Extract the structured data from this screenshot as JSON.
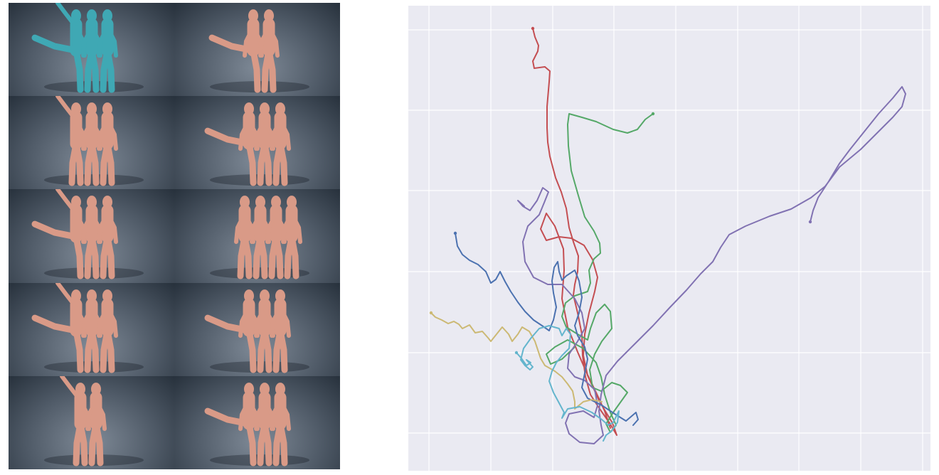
{
  "colors": {
    "panel_bg": "#eaeaf2",
    "grid_line": "#ffffff",
    "figure_teal": "#3fa8b4",
    "figure_peach": "#d99a87",
    "trajectory_blue": "#4c72b0",
    "trajectory_green": "#55a868",
    "trajectory_red": "#c44e52",
    "trajectory_purple": "#8172b2",
    "trajectory_yellow": "#ccb974",
    "trajectory_cyan": "#64b5cd"
  },
  "renders": {
    "rows": 5,
    "columns": 2,
    "tiles": [
      {
        "figure_color": "teal",
        "figures": 3
      },
      {
        "figure_color": "peach",
        "figures": 2
      },
      {
        "figure_color": "peach",
        "figures": 3
      },
      {
        "figure_color": "peach",
        "figures": 3
      },
      {
        "figure_color": "peach",
        "figures": 3
      },
      {
        "figure_color": "peach",
        "figures": 4
      },
      {
        "figure_color": "peach",
        "figures": 3
      },
      {
        "figure_color": "peach",
        "figures": 3
      },
      {
        "figure_color": "peach",
        "figures": 2
      },
      {
        "figure_color": "peach",
        "figures": 3
      }
    ]
  },
  "chart_data": {
    "type": "line",
    "title": "",
    "xlabel": "",
    "ylabel": "",
    "grid": true,
    "tick_labels_visible": false,
    "series": [
      {
        "color": "#c44e52",
        "points": [
          [
            749,
            40
          ],
          [
            752,
            52
          ],
          [
            757,
            64
          ],
          [
            756,
            72
          ],
          [
            749,
            86
          ],
          [
            751,
            96
          ],
          [
            766,
            94
          ],
          [
            773,
            100
          ],
          [
            772,
            115
          ],
          [
            769,
            150
          ],
          [
            769,
            180
          ],
          [
            770,
            200
          ],
          [
            773,
            220
          ],
          [
            781,
            250
          ],
          [
            789,
            270
          ],
          [
            796,
            293
          ],
          [
            800,
            320
          ],
          [
            806,
            340
          ],
          [
            813,
            360
          ],
          [
            812,
            382
          ],
          [
            808,
            400
          ],
          [
            806,
            415
          ],
          [
            812,
            440
          ],
          [
            818,
            470
          ],
          [
            819,
            500
          ],
          [
            823,
            530
          ],
          [
            830,
            555
          ],
          [
            843,
            575
          ],
          [
            857,
            595
          ],
          [
            867,
            612
          ],
          [
            861,
            595
          ],
          [
            843,
            565
          ],
          [
            826,
            528
          ],
          [
            820,
            500
          ],
          [
            822,
            470
          ],
          [
            828,
            440
          ],
          [
            836,
            410
          ],
          [
            840,
            390
          ],
          [
            833,
            365
          ],
          [
            821,
            345
          ],
          [
            803,
            335
          ],
          [
            786,
            333
          ],
          [
            768,
            338
          ],
          [
            760,
            322
          ],
          [
            768,
            300
          ],
          [
            780,
            318
          ],
          [
            792,
            350
          ],
          [
            793,
            380
          ],
          [
            790,
            420
          ],
          [
            798,
            460
          ],
          [
            812,
            495
          ],
          [
            825,
            525
          ],
          [
            838,
            552
          ],
          [
            850,
            578
          ],
          [
            858,
            602
          ]
        ]
      },
      {
        "color": "#55a868",
        "points": [
          [
            918,
            160
          ],
          [
            907,
            168
          ],
          [
            896,
            182
          ],
          [
            882,
            187
          ],
          [
            862,
            182
          ],
          [
            838,
            171
          ],
          [
            818,
            165
          ],
          [
            800,
            160
          ],
          [
            798,
            175
          ],
          [
            799,
            205
          ],
          [
            803,
            240
          ],
          [
            813,
            275
          ],
          [
            822,
            305
          ],
          [
            835,
            325
          ],
          [
            843,
            342
          ],
          [
            844,
            356
          ],
          [
            835,
            364
          ],
          [
            828,
            380
          ],
          [
            830,
            398
          ],
          [
            826,
            410
          ],
          [
            808,
            416
          ],
          [
            795,
            426
          ],
          [
            790,
            445
          ],
          [
            796,
            460
          ],
          [
            812,
            470
          ],
          [
            826,
            478
          ],
          [
            830,
            462
          ],
          [
            838,
            440
          ],
          [
            850,
            428
          ],
          [
            858,
            438
          ],
          [
            860,
            462
          ],
          [
            846,
            480
          ],
          [
            836,
            498
          ],
          [
            829,
            520
          ],
          [
            833,
            545
          ],
          [
            845,
            550
          ],
          [
            860,
            538
          ],
          [
            872,
            542
          ],
          [
            882,
            552
          ],
          [
            872,
            566
          ],
          [
            862,
            580
          ],
          [
            852,
            596
          ],
          [
            858,
            608
          ],
          [
            866,
            598
          ],
          [
            858,
            580
          ],
          [
            850,
            555
          ],
          [
            845,
            530
          ],
          [
            838,
            510
          ],
          [
            820,
            490
          ],
          [
            798,
            478
          ],
          [
            780,
            488
          ],
          [
            768,
            498
          ],
          [
            774,
            512
          ],
          [
            790,
            505
          ],
          [
            808,
            488
          ]
        ]
      },
      {
        "color": "#8172b2",
        "points": [
          [
            1139,
            312
          ],
          [
            1143,
            296
          ],
          [
            1150,
            278
          ],
          [
            1165,
            255
          ],
          [
            1180,
            230
          ],
          [
            1195,
            210
          ],
          [
            1215,
            185
          ],
          [
            1235,
            160
          ],
          [
            1255,
            138
          ],
          [
            1268,
            122
          ],
          [
            1273,
            132
          ],
          [
            1268,
            150
          ],
          [
            1255,
            165
          ],
          [
            1235,
            185
          ],
          [
            1210,
            210
          ],
          [
            1180,
            235
          ],
          [
            1160,
            262
          ],
          [
            1140,
            278
          ],
          [
            1112,
            294
          ],
          [
            1082,
            304
          ],
          [
            1048,
            318
          ],
          [
            1025,
            330
          ],
          [
            1013,
            348
          ],
          [
            1002,
            368
          ],
          [
            985,
            385
          ],
          [
            965,
            408
          ],
          [
            942,
            432
          ],
          [
            918,
            458
          ],
          [
            890,
            486
          ],
          [
            868,
            508
          ],
          [
            852,
            528
          ],
          [
            845,
            555
          ],
          [
            842,
            578
          ],
          [
            845,
            598
          ],
          [
            848,
            612
          ],
          [
            835,
            624
          ],
          [
            815,
            622
          ],
          [
            800,
            610
          ],
          [
            795,
            595
          ],
          [
            800,
            582
          ],
          [
            820,
            578
          ],
          [
            835,
            587
          ],
          [
            840,
            570
          ],
          [
            836,
            548
          ],
          [
            822,
            535
          ],
          [
            808,
            530
          ],
          [
            798,
            518
          ],
          [
            800,
            498
          ],
          [
            812,
            480
          ],
          [
            822,
            462
          ],
          [
            818,
            440
          ],
          [
            808,
            420
          ],
          [
            790,
            400
          ],
          [
            770,
            400
          ],
          [
            750,
            390
          ],
          [
            738,
            368
          ],
          [
            735,
            340
          ],
          [
            742,
            318
          ],
          [
            758,
            302
          ],
          [
            765,
            285
          ],
          [
            771,
            270
          ],
          [
            763,
            264
          ],
          [
            755,
            282
          ],
          [
            745,
            296
          ],
          [
            735,
            290
          ],
          [
            728,
            282
          ],
          [
            737,
            290
          ]
        ]
      },
      {
        "color": "#4c72b0",
        "points": [
          [
            640,
            328
          ],
          [
            643,
            346
          ],
          [
            650,
            358
          ],
          [
            660,
            366
          ],
          [
            672,
            372
          ],
          [
            683,
            382
          ],
          [
            690,
            398
          ],
          [
            697,
            393
          ],
          [
            703,
            382
          ],
          [
            710,
            396
          ],
          [
            718,
            410
          ],
          [
            728,
            425
          ],
          [
            738,
            438
          ],
          [
            750,
            450
          ],
          [
            762,
            458
          ],
          [
            772,
            465
          ],
          [
            778,
            450
          ],
          [
            782,
            432
          ],
          [
            778,
            412
          ],
          [
            776,
            395
          ],
          [
            779,
            376
          ],
          [
            784,
            368
          ],
          [
            786,
            382
          ],
          [
            790,
            394
          ],
          [
            796,
            388
          ],
          [
            808,
            380
          ],
          [
            814,
            395
          ],
          [
            818,
            418
          ],
          [
            814,
            440
          ],
          [
            808,
            458
          ],
          [
            812,
            472
          ],
          [
            822,
            488
          ],
          [
            826,
            505
          ],
          [
            822,
            525
          ],
          [
            818,
            545
          ],
          [
            826,
            560
          ],
          [
            846,
            570
          ],
          [
            864,
            582
          ],
          [
            880,
            592
          ],
          [
            894,
            580
          ],
          [
            897,
            590
          ],
          [
            890,
            598
          ]
        ]
      },
      {
        "color": "#ccb974",
        "points": [
          [
            606,
            440
          ],
          [
            612,
            446
          ],
          [
            621,
            450
          ],
          [
            630,
            455
          ],
          [
            638,
            452
          ],
          [
            645,
            456
          ],
          [
            650,
            462
          ],
          [
            660,
            457
          ],
          [
            668,
            468
          ],
          [
            678,
            466
          ],
          [
            686,
            475
          ],
          [
            690,
            480
          ],
          [
            698,
            470
          ],
          [
            706,
            460
          ],
          [
            715,
            470
          ],
          [
            720,
            480
          ],
          [
            728,
            470
          ],
          [
            734,
            460
          ],
          [
            744,
            466
          ],
          [
            752,
            480
          ],
          [
            756,
            492
          ],
          [
            760,
            504
          ],
          [
            766,
            514
          ],
          [
            780,
            522
          ],
          [
            790,
            530
          ],
          [
            798,
            540
          ],
          [
            805,
            550
          ],
          [
            808,
            565
          ],
          [
            808,
            575
          ],
          [
            820,
            565
          ],
          [
            832,
            562
          ],
          [
            846,
            565
          ]
        ]
      },
      {
        "color": "#64b5cd",
        "points": [
          [
            726,
            496
          ],
          [
            733,
            504
          ],
          [
            740,
            514
          ],
          [
            746,
            510
          ],
          [
            740,
            506
          ],
          [
            749,
            516
          ],
          [
            745,
            520
          ],
          [
            738,
            514
          ],
          [
            732,
            506
          ],
          [
            736,
            490
          ],
          [
            746,
            476
          ],
          [
            758,
            462
          ],
          [
            772,
            458
          ],
          [
            786,
            462
          ],
          [
            790,
            472
          ],
          [
            796,
            462
          ],
          [
            802,
            470
          ],
          [
            800,
            490
          ],
          [
            790,
            500
          ],
          [
            782,
            510
          ],
          [
            776,
            522
          ],
          [
            772,
            536
          ],
          [
            778,
            552
          ],
          [
            785,
            565
          ],
          [
            793,
            580
          ],
          [
            790,
            588
          ],
          [
            798,
            575
          ],
          [
            815,
            572
          ],
          [
            832,
            580
          ],
          [
            846,
            590
          ],
          [
            855,
            598
          ],
          [
            862,
            594
          ],
          [
            870,
            578
          ],
          [
            868,
            594
          ],
          [
            860,
            606
          ],
          [
            852,
            612
          ],
          [
            848,
            620
          ]
        ]
      }
    ]
  }
}
